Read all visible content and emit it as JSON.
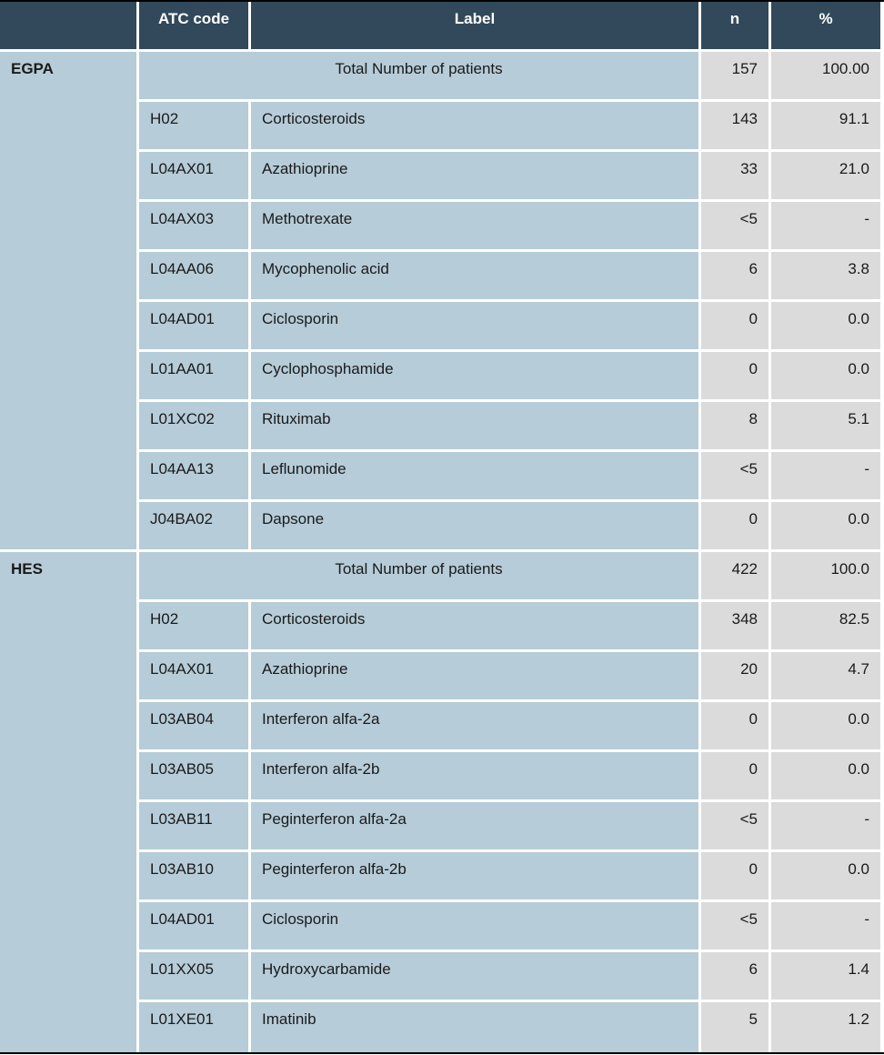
{
  "colors": {
    "header_bg": "#31495A",
    "header_text": "#FFFFFF",
    "body_blue": "#B6CCD8",
    "value_gray": "#DBDBDB",
    "border_white": "#FFFFFF",
    "outer_line": "#000000",
    "body_text": "#1A1A1A"
  },
  "table": {
    "headers": {
      "atc": "ATC code",
      "label": "Label",
      "n": "n",
      "pct": "%"
    },
    "groups": [
      {
        "name": "EGPA",
        "total": {
          "label": "Total Number of patients",
          "n": "157",
          "pct": "100.00"
        },
        "rows": [
          {
            "atc": "H02",
            "label": "Corticosteroids",
            "n": "143",
            "pct": "91.1"
          },
          {
            "atc": "L04AX01",
            "label": "Azathioprine",
            "n": "33",
            "pct": "21.0"
          },
          {
            "atc": "L04AX03",
            "label": "Methotrexate",
            "n": "<5",
            "pct": "-"
          },
          {
            "atc": "L04AA06",
            "label": "Mycophenolic acid",
            "n": "6",
            "pct": "3.8"
          },
          {
            "atc": "L04AD01",
            "label": "Ciclosporin",
            "n": "0",
            "pct": "0.0"
          },
          {
            "atc": "L01AA01",
            "label": "Cyclophosphamide",
            "n": "0",
            "pct": "0.0"
          },
          {
            "atc": "L01XC02",
            "label": "Rituximab",
            "n": "8",
            "pct": "5.1"
          },
          {
            "atc": "L04AA13",
            "label": "Leflunomide",
            "n": "<5",
            "pct": "-"
          },
          {
            "atc": "J04BA02",
            "label": "Dapsone",
            "n": "0",
            "pct": "0.0"
          }
        ]
      },
      {
        "name": "HES",
        "total": {
          "label": "Total Number of patients",
          "n": "422",
          "pct": "100.0"
        },
        "rows": [
          {
            "atc": "H02",
            "label": "Corticosteroids",
            "n": "348",
            "pct": "82.5"
          },
          {
            "atc": "L04AX01",
            "label": "Azathioprine",
            "n": "20",
            "pct": "4.7"
          },
          {
            "atc": "L03AB04",
            "label": "Interferon alfa-2a",
            "n": "0",
            "pct": "0.0"
          },
          {
            "atc": "L03AB05",
            "label": "Interferon alfa-2b",
            "n": "0",
            "pct": "0.0"
          },
          {
            "atc": "L03AB11",
            "label": "Peginterferon alfa-2a",
            "n": "<5",
            "pct": "-"
          },
          {
            "atc": "L03AB10",
            "label": "Peginterferon alfa-2b",
            "n": "0",
            "pct": "0.0"
          },
          {
            "atc": "L04AD01",
            "label": "Ciclosporin",
            "n": "<5",
            "pct": "-"
          },
          {
            "atc": "L01XX05",
            "label": "Hydroxycarbamide",
            "n": "6",
            "pct": "1.4"
          },
          {
            "atc": "L01XE01",
            "label": "Imatinib",
            "n": "5",
            "pct": "1.2"
          }
        ]
      }
    ]
  }
}
